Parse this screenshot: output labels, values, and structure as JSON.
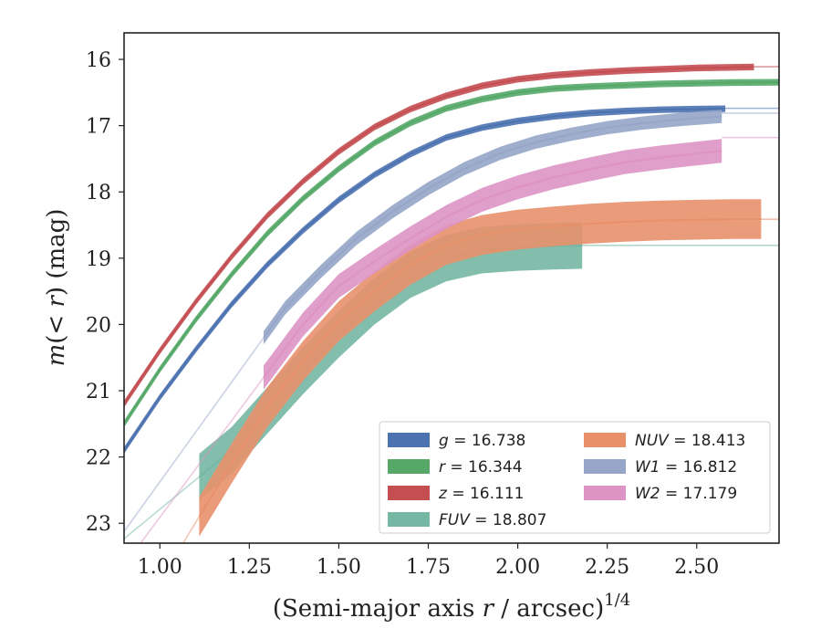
{
  "chart_data": {
    "type": "line",
    "xlabel": "(Semi-major axis r / arcsec)^1/4",
    "xlabel_parts": {
      "pre": "(Semi-major axis ",
      "var": "r",
      "post": " / arcsec)",
      "exp": "1/4"
    },
    "ylabel": "m(< r) (mag)",
    "ylabel_parts": {
      "m": "m",
      "mid": "(< ",
      "var": "r",
      "post": ") (mag)"
    },
    "xlim": [
      0.9,
      2.73
    ],
    "ylim": [
      23.3,
      15.6
    ],
    "y_inverted": true,
    "xticks": [
      1.0,
      1.25,
      1.5,
      1.75,
      2.0,
      2.25,
      2.5
    ],
    "xtick_labels": [
      "1.00",
      "1.25",
      "1.50",
      "1.75",
      "2.00",
      "2.25",
      "2.50"
    ],
    "yticks": [
      16,
      17,
      18,
      19,
      20,
      21,
      22,
      23
    ],
    "ytick_labels": [
      "16",
      "17",
      "18",
      "19",
      "20",
      "21",
      "22",
      "23"
    ],
    "legend_position": "lower-right",
    "legend_columns": 2,
    "series": [
      {
        "key": "g",
        "name": "g = 16.738",
        "label_var": "g",
        "label_val": " = 16.738",
        "color": "#4c72b0",
        "band": 0.05,
        "x0": 0.9,
        "xend": 2.58,
        "asym": 16.738,
        "x": [
          0.9,
          1.0,
          1.1,
          1.2,
          1.3,
          1.4,
          1.5,
          1.6,
          1.7,
          1.8,
          1.9,
          2.0,
          2.1,
          2.2,
          2.3,
          2.4,
          2.5,
          2.58
        ],
        "y": [
          21.9,
          21.1,
          20.38,
          19.7,
          19.1,
          18.58,
          18.12,
          17.74,
          17.43,
          17.18,
          17.03,
          16.93,
          16.86,
          16.81,
          16.78,
          16.76,
          16.75,
          16.745
        ]
      },
      {
        "key": "r",
        "name": "r = 16.344",
        "label_var": "r",
        "label_val": " = 16.344",
        "color": "#55a868",
        "band": 0.05,
        "x0": 0.9,
        "xend": 2.73,
        "asym": 16.344,
        "x": [
          0.9,
          1.0,
          1.1,
          1.2,
          1.3,
          1.4,
          1.5,
          1.6,
          1.7,
          1.8,
          1.9,
          2.0,
          2.1,
          2.2,
          2.3,
          2.4,
          2.5,
          2.6,
          2.73
        ],
        "y": [
          21.5,
          20.68,
          19.93,
          19.25,
          18.63,
          18.1,
          17.65,
          17.26,
          16.96,
          16.74,
          16.6,
          16.5,
          16.44,
          16.41,
          16.39,
          16.37,
          16.36,
          16.35,
          16.345
        ]
      },
      {
        "key": "z",
        "name": "z = 16.111",
        "label_var": "z",
        "label_val": " = 16.111",
        "color": "#c44e52",
        "band": 0.05,
        "x0": 0.9,
        "xend": 2.66,
        "asym": 16.111,
        "x": [
          0.9,
          1.0,
          1.1,
          1.2,
          1.3,
          1.4,
          1.5,
          1.6,
          1.7,
          1.8,
          1.9,
          2.0,
          2.1,
          2.2,
          2.3,
          2.4,
          2.5,
          2.66
        ],
        "y": [
          21.2,
          20.4,
          19.66,
          18.98,
          18.36,
          17.84,
          17.39,
          17.02,
          16.75,
          16.55,
          16.4,
          16.3,
          16.24,
          16.2,
          16.17,
          16.15,
          16.13,
          16.115
        ]
      },
      {
        "key": "FUV",
        "name": "FUV = 18.807",
        "label_var": "FUV",
        "label_val": " = 18.807",
        "color": "#76b7a3",
        "band": 0.35,
        "x0": 1.11,
        "xend": 2.18,
        "asym": 18.807,
        "x": [
          1.11,
          1.2,
          1.3,
          1.4,
          1.5,
          1.6,
          1.7,
          1.8,
          1.9,
          2.0,
          2.1,
          2.18
        ],
        "y": [
          22.3,
          21.9,
          21.3,
          20.7,
          20.15,
          19.65,
          19.25,
          19.0,
          18.88,
          18.84,
          18.82,
          18.81
        ]
      },
      {
        "key": "NUV",
        "name": "NUV = 18.413",
        "label_var": "NUV",
        "label_val": " = 18.413",
        "color": "#e8906a",
        "band": 0.3,
        "x0": 1.11,
        "xend": 2.68,
        "asym": 18.413,
        "x": [
          1.11,
          1.2,
          1.3,
          1.4,
          1.5,
          1.6,
          1.7,
          1.8,
          1.9,
          2.0,
          2.1,
          2.2,
          2.3,
          2.4,
          2.5,
          2.6,
          2.68
        ],
        "y": [
          22.9,
          22.1,
          21.25,
          20.55,
          19.95,
          19.5,
          19.1,
          18.8,
          18.65,
          18.57,
          18.52,
          18.48,
          18.45,
          18.43,
          18.42,
          18.41,
          18.41
        ]
      },
      {
        "key": "W1",
        "name": "W1 = 16.812",
        "label_var": "W1",
        "label_val": " = 16.812",
        "color": "#96a5c8",
        "band": 0.1,
        "x0": 1.29,
        "xend": 2.57,
        "asym": 16.812,
        "x": [
          1.29,
          1.35,
          1.45,
          1.55,
          1.65,
          1.75,
          1.85,
          1.95,
          2.05,
          2.15,
          2.25,
          2.35,
          2.45,
          2.57
        ],
        "y": [
          20.2,
          19.75,
          19.2,
          18.7,
          18.3,
          17.95,
          17.65,
          17.42,
          17.25,
          17.13,
          17.03,
          16.96,
          16.91,
          16.86
        ]
      },
      {
        "key": "W2",
        "name": "W2 = 17.179",
        "label_var": "W2",
        "label_val": " = 17.179",
        "color": "#dd93c4",
        "band": 0.18,
        "x0": 1.29,
        "xend": 2.57,
        "asym": 17.179,
        "x": [
          1.29,
          1.4,
          1.5,
          1.6,
          1.7,
          1.8,
          1.9,
          2.0,
          2.1,
          2.2,
          2.3,
          2.4,
          2.5,
          2.57
        ],
        "y": [
          20.8,
          20.0,
          19.42,
          19.05,
          18.7,
          18.38,
          18.12,
          17.93,
          17.78,
          17.66,
          17.55,
          17.48,
          17.42,
          17.38
        ]
      }
    ],
    "legend_order": [
      "g",
      "NUV",
      "r",
      "W1",
      "z",
      "W2",
      "FUV"
    ]
  }
}
